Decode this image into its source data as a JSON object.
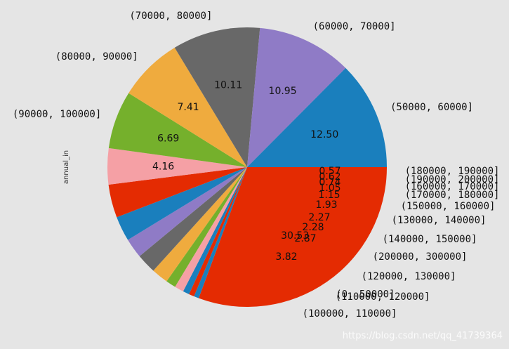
{
  "chart_data": {
    "type": "pie",
    "ylabel": "annual_in",
    "labels": [
      "(0, 50000]",
      "(180000, 190000]",
      "(190000, 200000]",
      "(160000, 170000]",
      "(170000, 180000]",
      "(150000, 160000]",
      "(130000, 140000]",
      "(140000, 150000]",
      "(200000, 300000]",
      "(120000, 130000]",
      "(110000, 120000]",
      "(100000, 110000]",
      "(90000, 100000]",
      "(80000, 90000]",
      "(70000, 80000]",
      "(60000, 70000]",
      "(50000, 60000]"
    ],
    "values": [
      30.53,
      0.57,
      0.62,
      0.74,
      1.05,
      1.15,
      1.93,
      2.27,
      2.28,
      2.87,
      3.82,
      4.16,
      6.69,
      7.41,
      10.11,
      10.95,
      12.5
    ],
    "value_labels": [
      "30.53",
      "0.57",
      "0.62",
      "0.74",
      "1.05",
      "1.15",
      "1.93",
      "2.27",
      "2.28",
      "2.87",
      "3.82",
      "4.16",
      "6.69",
      "7.41",
      "10.11",
      "10.95",
      "12.50"
    ],
    "colors": [
      "#e42b02",
      "#1a7fbd",
      "#e42b02",
      "#1a7fbd",
      "#f5a0a5",
      "#75b02c",
      "#efab3e",
      "#686868",
      "#8f7bc6",
      "#1a7fbd",
      "#e42b02",
      "#f5a0a5",
      "#75b02c",
      "#efab3e",
      "#686868",
      "#8f7bc6",
      "#1a7fbd"
    ],
    "start_angle_deg": 0,
    "direction": "clockwise"
  },
  "watermark": "https://blog.csdn.net/qq_41739364"
}
